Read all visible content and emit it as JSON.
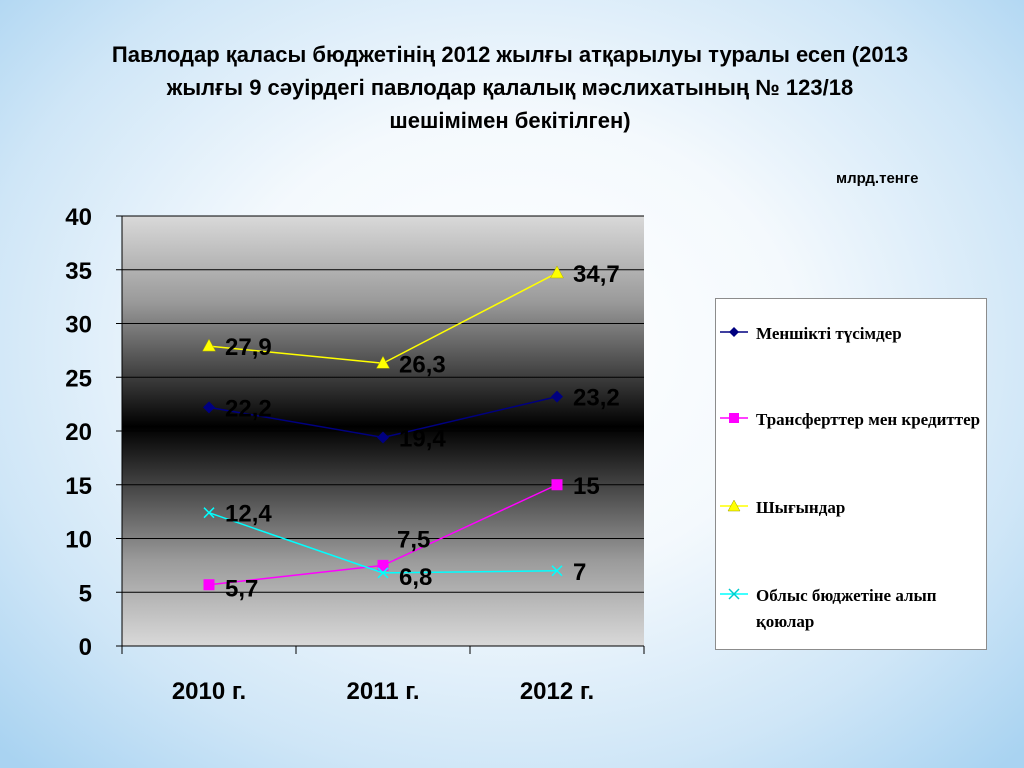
{
  "slide": {
    "title": "Павлодар қаласы бюджетінің 2012 жылғы  атқарылуы туралы есеп (2013 жылғы 9 сәуірдегі павлодар қалалық мәслихатының № 123/18 шешімімен бекітілген)",
    "unit": "млрд.тенге"
  },
  "chart_data": {
    "type": "line",
    "categories": [
      "2010 г.",
      "2011 г.",
      "2012 г."
    ],
    "ylim": [
      0,
      40
    ],
    "yticks": [
      0,
      5,
      10,
      15,
      20,
      25,
      30,
      35,
      40
    ],
    "grid": true,
    "legend_position": "right",
    "series": [
      {
        "name": "Меншікті түсімдер",
        "values": [
          22.2,
          19.4,
          23.2
        ],
        "labels": [
          "22,2",
          "19,4",
          "23,2"
        ],
        "color": "#000080",
        "marker": "diamond"
      },
      {
        "name": "Трансферттер мен кредиттер",
        "values": [
          5.7,
          7.5,
          15
        ],
        "labels": [
          "5,7",
          "7,5",
          "15"
        ],
        "color": "#ff00ff",
        "marker": "square"
      },
      {
        "name": "Шығындар",
        "values": [
          27.9,
          26.3,
          34.7
        ],
        "labels": [
          "27,9",
          "26,3",
          "34,7"
        ],
        "color": "#ffff00",
        "marker": "triangle"
      },
      {
        "name": "Облыс бюджетіне алып қоюлар",
        "values": [
          12.4,
          6.8,
          7
        ],
        "labels": [
          "12,4",
          "6,8",
          "7"
        ],
        "color": "#00ffff",
        "marker": "x"
      }
    ]
  }
}
